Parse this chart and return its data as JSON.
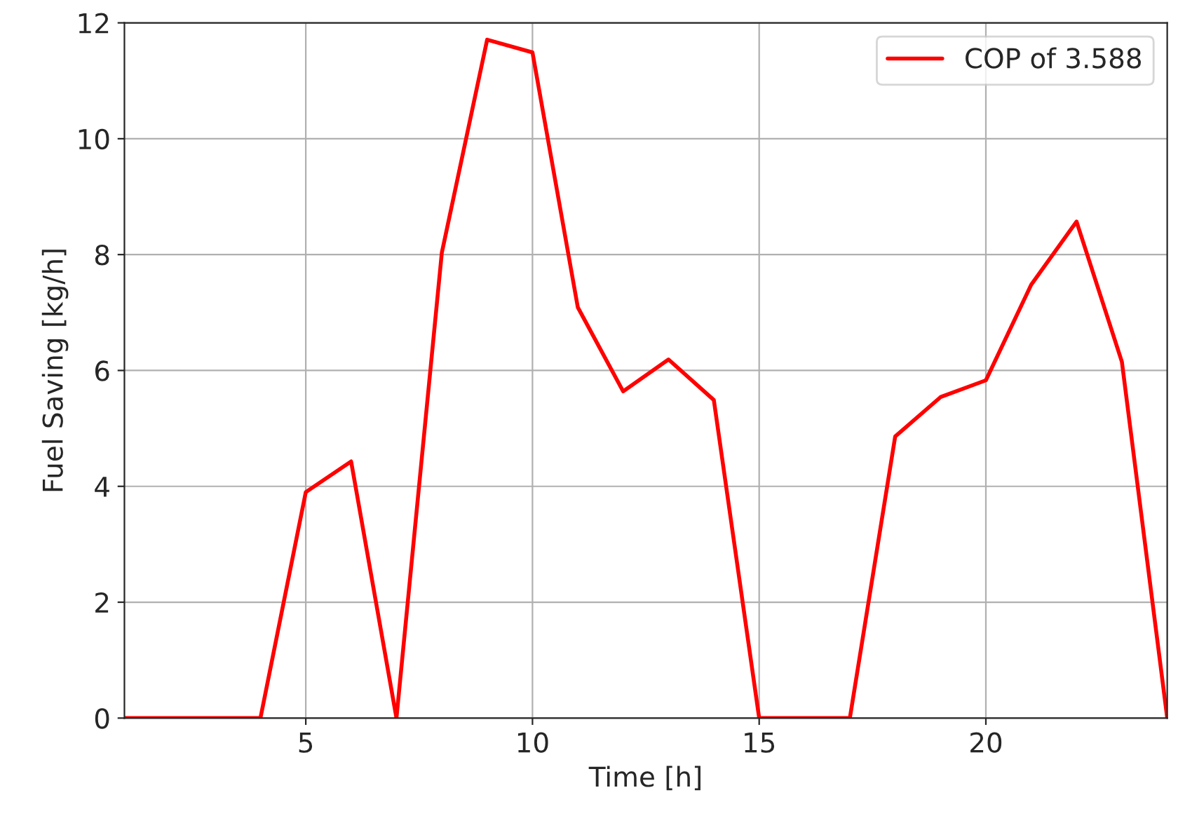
{
  "chart_data": {
    "type": "line",
    "xlabel": "Time [h]",
    "ylabel": "Fuel Saving [kg/h]",
    "x": [
      1,
      2,
      3,
      4,
      5,
      6,
      7,
      8,
      9,
      10,
      11,
      12,
      13,
      14,
      15,
      16,
      17,
      18,
      19,
      20,
      21,
      22,
      23,
      24
    ],
    "series": [
      {
        "name": "COP of 3.588",
        "color": "#ff0000",
        "values": [
          0,
          0,
          0,
          0,
          3.9,
          4.43,
          0,
          8.03,
          11.71,
          11.49,
          7.09,
          5.64,
          6.19,
          5.49,
          0,
          0,
          0,
          4.86,
          5.54,
          5.83,
          7.48,
          8.57,
          6.15,
          0
        ]
      }
    ],
    "xlim": [
      1,
      24
    ],
    "xticks": [
      5,
      10,
      15,
      20
    ],
    "ylim": [
      0,
      12
    ],
    "yticks": [
      0,
      2,
      4,
      6,
      8,
      10,
      12
    ],
    "grid": true,
    "legend": "top right",
    "line_style": "solid",
    "marker": "none"
  }
}
